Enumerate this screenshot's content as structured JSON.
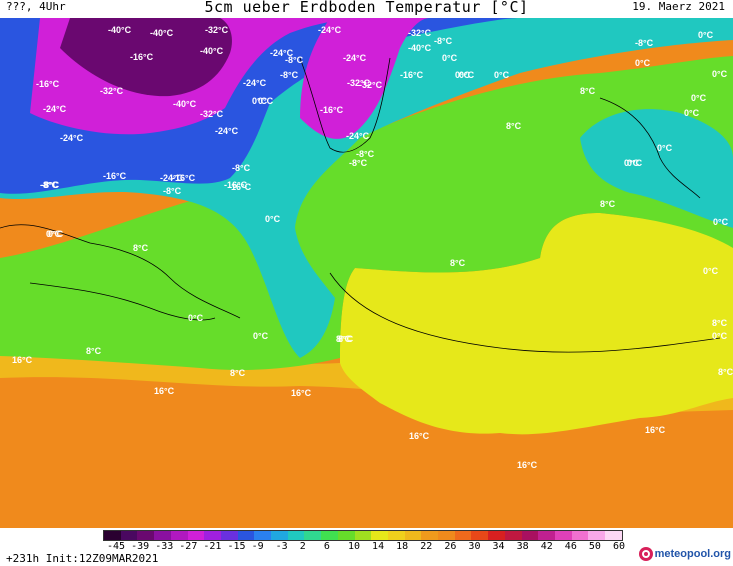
{
  "header": {
    "left": "???, 4Uhr",
    "title": "5cm ueber Erdboden Temperatur [°C]",
    "date": "19. Maerz 2021"
  },
  "colors": {
    "ocean_warm": "#f08a1c",
    "ocean_mid": "#f0b81c",
    "yellow": "#e6e81a",
    "green": "#66dd2a",
    "cyan": "#20c8c0",
    "blue": "#2a55e0",
    "magenta": "#d020d8",
    "purple": "#6a0870"
  },
  "isotherm_labels": [
    {
      "text": "-40°C"
    },
    {
      "text": "-40°C"
    },
    {
      "text": "-32°C"
    },
    {
      "text": "-24°C"
    },
    {
      "text": "-32°C"
    },
    {
      "text": "-8°C"
    },
    {
      "text": "-8°C"
    },
    {
      "text": "0°C"
    },
    {
      "text": "-16°C"
    },
    {
      "text": "-32°C"
    },
    {
      "text": "-40°C"
    },
    {
      "text": "-24°C"
    },
    {
      "text": "-16°C"
    },
    {
      "text": "-40°C"
    },
    {
      "text": "-24°C"
    },
    {
      "text": "-8°C"
    },
    {
      "text": "0°C"
    },
    {
      "text": "-16°C"
    },
    {
      "text": "-24°C"
    },
    {
      "text": "-32°C"
    },
    {
      "text": "-16°C"
    },
    {
      "text": "0°C"
    },
    {
      "text": "0°C"
    },
    {
      "text": "-24°C"
    },
    {
      "text": "-32°C"
    },
    {
      "text": "-40°C"
    },
    {
      "text": "-8°C"
    },
    {
      "text": "0°C"
    },
    {
      "text": "-16°C"
    },
    {
      "text": "-24°C"
    },
    {
      "text": "0°C"
    },
    {
      "text": "-24°C"
    },
    {
      "text": "-8°C"
    },
    {
      "text": "-16°C"
    },
    {
      "text": "-8°C"
    },
    {
      "text": "-8°C"
    },
    {
      "text": "-16°C"
    },
    {
      "text": "-24°C"
    },
    {
      "text": "-8°C"
    },
    {
      "text": "-24°C"
    },
    {
      "text": "-16°C"
    },
    {
      "text": "-32°C"
    },
    {
      "text": "-8°C"
    },
    {
      "text": "0°C"
    },
    {
      "text": "0°C"
    },
    {
      "text": "-8°C"
    },
    {
      "text": "0°C"
    },
    {
      "text": "0°C"
    },
    {
      "text": "0°C"
    },
    {
      "text": "8°C"
    },
    {
      "text": "8°C"
    },
    {
      "text": "0°C"
    },
    {
      "text": "0°C"
    },
    {
      "text": "0°C"
    },
    {
      "text": "8°C"
    },
    {
      "text": "8°C"
    },
    {
      "text": "0°C"
    },
    {
      "text": "0°C"
    },
    {
      "text": "8°C"
    },
    {
      "text": "0°C"
    },
    {
      "text": "0°C"
    },
    {
      "text": "0°C"
    },
    {
      "text": "0°C"
    },
    {
      "text": "8°C"
    },
    {
      "text": "8°C"
    },
    {
      "text": "16°C"
    },
    {
      "text": "8°C"
    },
    {
      "text": "8°C"
    },
    {
      "text": "16°C"
    },
    {
      "text": "16°C"
    },
    {
      "text": "8°C"
    },
    {
      "text": "16°C"
    },
    {
      "text": "16°C"
    },
    {
      "text": "16°C"
    },
    {
      "text": "0°C"
    },
    {
      "text": "8°C"
    },
    {
      "text": "0°C"
    }
  ],
  "colorbar": {
    "ticks": [
      "-45",
      "-39",
      "-33",
      "-27",
      "-21",
      "-15",
      "-9",
      "-3",
      "2",
      "6",
      "10",
      "14",
      "18",
      "22",
      "26",
      "30",
      "34",
      "38",
      "42",
      "46",
      "50",
      "60"
    ],
    "colors": [
      "#2a0030",
      "#4a0860",
      "#6a0870",
      "#8a10a0",
      "#b018c0",
      "#d020d8",
      "#a020e0",
      "#6a30e0",
      "#2a55e0",
      "#2a80f0",
      "#20a8e0",
      "#20c8c0",
      "#30d890",
      "#40e050",
      "#66dd2a",
      "#a0e020",
      "#e6e81a",
      "#f0d01c",
      "#f0b81c",
      "#f09a1c",
      "#f08a1c",
      "#f06a1c",
      "#e84818",
      "#d82020",
      "#c01840",
      "#a81060",
      "#c02090",
      "#e040b8",
      "#f070d0",
      "#f8a8e8",
      "#fcd8f4"
    ]
  },
  "footer": {
    "run": "+231h Init:12Z09MAR2021",
    "brand": "meteopool.org"
  }
}
